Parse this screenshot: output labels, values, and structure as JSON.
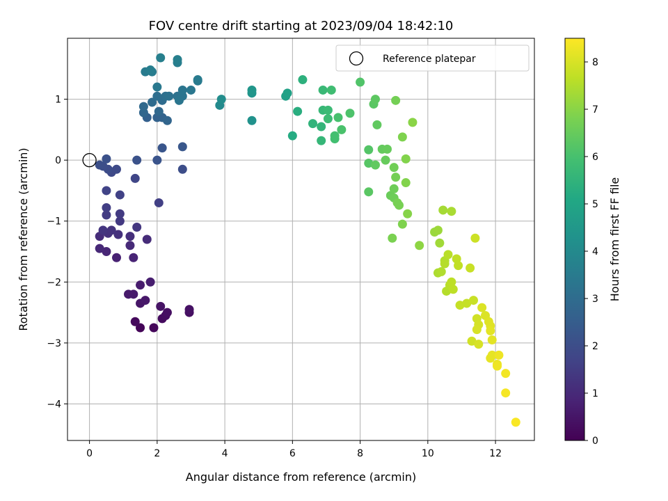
{
  "chart_data": {
    "type": "scatter",
    "title": "FOV centre drift starting at 2023/09/04 18:42:10",
    "xlabel": "Angular distance from reference (arcmin)",
    "ylabel": "Rotation from reference (arcmin)",
    "colorbar_label": "Hours from first FF file",
    "xlim": [
      -0.65,
      13.15
    ],
    "ylim": [
      -4.6,
      2.0
    ],
    "clim": [
      0,
      8.5
    ],
    "x_ticks": [
      0,
      2,
      4,
      6,
      8,
      10,
      12
    ],
    "y_ticks": [
      1,
      0,
      -1,
      -2,
      -3,
      -4
    ],
    "colorbar_ticks": [
      0,
      1,
      2,
      3,
      4,
      5,
      6,
      7,
      8
    ],
    "grid": true,
    "colormap": "viridis",
    "legend": {
      "position": "top-right",
      "entries": [
        {
          "label": "Reference platepar",
          "marker": "open-circle"
        }
      ]
    },
    "reference_point": {
      "x": 0,
      "y": 0
    },
    "points": [
      [
        1.5,
        -2.75,
        0.1
      ],
      [
        1.9,
        -2.75,
        0.15
      ],
      [
        1.35,
        -2.65,
        0.2
      ],
      [
        2.15,
        -2.6,
        0.25
      ],
      [
        2.25,
        -2.55,
        0.3
      ],
      [
        2.3,
        -2.5,
        0.35
      ],
      [
        2.95,
        -2.5,
        0.35
      ],
      [
        2.95,
        -2.45,
        0.4
      ],
      [
        2.1,
        -2.4,
        0.45
      ],
      [
        1.5,
        -2.35,
        0.5
      ],
      [
        1.65,
        -2.3,
        0.55
      ],
      [
        1.15,
        -2.2,
        0.6
      ],
      [
        1.3,
        -2.2,
        0.6
      ],
      [
        1.5,
        -2.05,
        0.65
      ],
      [
        1.8,
        -2.0,
        0.7
      ],
      [
        0.8,
        -1.6,
        0.8
      ],
      [
        1.3,
        -1.6,
        0.85
      ],
      [
        0.5,
        -1.5,
        0.9
      ],
      [
        0.3,
        -1.45,
        0.95
      ],
      [
        1.2,
        -1.4,
        1.0
      ],
      [
        1.7,
        -1.3,
        1.05
      ],
      [
        0.3,
        -1.25,
        1.1
      ],
      [
        1.2,
        -1.25,
        1.15
      ],
      [
        0.85,
        -1.22,
        1.2
      ],
      [
        0.55,
        -1.2,
        1.2
      ],
      [
        0.65,
        -1.15,
        1.25
      ],
      [
        0.4,
        -1.15,
        1.3
      ],
      [
        1.4,
        -1.1,
        1.35
      ],
      [
        0.9,
        -1.0,
        1.4
      ],
      [
        0.9,
        -0.88,
        1.45
      ],
      [
        0.5,
        -0.9,
        1.5
      ],
      [
        0.5,
        -0.78,
        1.55
      ],
      [
        2.05,
        -0.7,
        1.6
      ],
      [
        0.9,
        -0.57,
        1.65
      ],
      [
        0.5,
        -0.5,
        1.7
      ],
      [
        1.35,
        -0.3,
        1.75
      ],
      [
        0.65,
        -0.2,
        1.85
      ],
      [
        0.8,
        -0.15,
        1.9
      ],
      [
        0.55,
        -0.15,
        1.95
      ],
      [
        2.75,
        -0.15,
        2.0
      ],
      [
        0.4,
        -0.1,
        2.0
      ],
      [
        0.3,
        -0.08,
        2.05
      ],
      [
        0.5,
        0.02,
        2.1
      ],
      [
        1.4,
        0.0,
        2.15
      ],
      [
        2.0,
        0.0,
        2.2
      ],
      [
        2.15,
        0.2,
        2.25
      ],
      [
        2.75,
        0.22,
        2.3
      ],
      [
        1.7,
        0.7,
        2.6
      ],
      [
        2.0,
        0.7,
        2.65
      ],
      [
        2.15,
        0.7,
        2.7
      ],
      [
        2.3,
        0.65,
        2.75
      ],
      [
        1.6,
        0.78,
        2.8
      ],
      [
        2.05,
        0.8,
        2.85
      ],
      [
        1.6,
        0.88,
        2.9
      ],
      [
        1.85,
        0.95,
        2.95
      ],
      [
        2.15,
        0.98,
        3.0
      ],
      [
        2.0,
        1.05,
        3.05
      ],
      [
        2.25,
        1.05,
        3.1
      ],
      [
        2.35,
        1.05,
        3.15
      ],
      [
        2.6,
        1.05,
        3.2
      ],
      [
        2.75,
        1.05,
        3.25
      ],
      [
        2.65,
        0.98,
        3.3
      ],
      [
        2.75,
        1.15,
        3.3
      ],
      [
        3.0,
        1.15,
        3.35
      ],
      [
        2.0,
        1.2,
        3.4
      ],
      [
        3.2,
        1.3,
        3.45
      ],
      [
        3.2,
        1.32,
        3.5
      ],
      [
        1.65,
        1.45,
        3.5
      ],
      [
        1.85,
        1.45,
        3.55
      ],
      [
        1.8,
        1.48,
        3.6
      ],
      [
        2.6,
        1.6,
        3.6
      ],
      [
        2.6,
        1.65,
        3.65
      ],
      [
        2.1,
        1.68,
        3.65
      ],
      [
        3.85,
        0.9,
        4.0
      ],
      [
        3.9,
        1.0,
        4.1
      ],
      [
        4.8,
        0.65,
        4.3
      ],
      [
        4.8,
        1.1,
        4.4
      ],
      [
        4.8,
        1.15,
        4.45
      ],
      [
        5.8,
        1.05,
        4.8
      ],
      [
        5.85,
        1.1,
        4.85
      ],
      [
        6.0,
        0.4,
        5.2
      ],
      [
        6.15,
        0.8,
        5.3
      ],
      [
        6.3,
        1.32,
        5.4
      ],
      [
        6.6,
        0.6,
        5.5
      ],
      [
        6.85,
        0.55,
        5.55
      ],
      [
        6.85,
        0.32,
        5.6
      ],
      [
        6.9,
        0.82,
        5.65
      ],
      [
        6.9,
        1.15,
        5.7
      ],
      [
        7.05,
        0.82,
        5.75
      ],
      [
        7.05,
        0.68,
        5.8
      ],
      [
        7.15,
        1.15,
        5.85
      ],
      [
        7.25,
        0.35,
        5.9
      ],
      [
        7.25,
        0.4,
        5.95
      ],
      [
        7.35,
        0.7,
        6.0
      ],
      [
        7.45,
        0.5,
        6.05
      ],
      [
        7.7,
        0.77,
        6.1
      ],
      [
        8.0,
        1.28,
        6.15
      ],
      [
        8.25,
        0.17,
        6.2
      ],
      [
        8.25,
        -0.05,
        6.25
      ],
      [
        8.25,
        -0.52,
        6.3
      ],
      [
        8.4,
        0.92,
        6.3
      ],
      [
        8.45,
        1.0,
        6.35
      ],
      [
        8.45,
        -0.08,
        6.4
      ],
      [
        8.5,
        0.58,
        6.4
      ],
      [
        8.65,
        0.18,
        6.45
      ],
      [
        8.75,
        0.0,
        6.5
      ],
      [
        8.8,
        0.18,
        6.5
      ],
      [
        8.9,
        -0.58,
        6.55
      ],
      [
        9.0,
        -0.47,
        6.6
      ],
      [
        9.0,
        -0.62,
        6.6
      ],
      [
        9.0,
        -0.12,
        6.65
      ],
      [
        9.05,
        0.98,
        6.7
      ],
      [
        9.05,
        -0.28,
        6.7
      ],
      [
        9.1,
        -0.7,
        6.75
      ],
      [
        9.15,
        -0.74,
        6.75
      ],
      [
        8.95,
        -1.28,
        6.8
      ],
      [
        9.25,
        -1.05,
        6.85
      ],
      [
        9.25,
        0.38,
        6.85
      ],
      [
        9.35,
        -0.37,
        6.9
      ],
      [
        9.35,
        0.02,
        6.9
      ],
      [
        9.4,
        -0.88,
        6.95
      ],
      [
        9.55,
        0.62,
        7.0
      ],
      [
        9.75,
        -1.4,
        7.05
      ],
      [
        10.2,
        -1.18,
        7.2
      ],
      [
        10.3,
        -1.15,
        7.25
      ],
      [
        10.35,
        -1.36,
        7.3
      ],
      [
        10.45,
        -0.82,
        7.35
      ],
      [
        10.7,
        -0.84,
        7.4
      ],
      [
        10.3,
        -1.85,
        7.45
      ],
      [
        10.4,
        -1.83,
        7.5
      ],
      [
        10.5,
        -1.65,
        7.5
      ],
      [
        10.5,
        -1.7,
        7.55
      ],
      [
        10.55,
        -2.15,
        7.55
      ],
      [
        10.6,
        -1.55,
        7.6
      ],
      [
        10.65,
        -2.05,
        7.6
      ],
      [
        10.7,
        -2.0,
        7.65
      ],
      [
        10.75,
        -2.12,
        7.65
      ],
      [
        10.85,
        -1.62,
        7.7
      ],
      [
        10.9,
        -1.73,
        7.7
      ],
      [
        10.95,
        -2.38,
        7.75
      ],
      [
        11.15,
        -2.35,
        7.75
      ],
      [
        11.25,
        -1.77,
        7.8
      ],
      [
        11.35,
        -2.3,
        7.8
      ],
      [
        11.4,
        -1.28,
        7.85
      ],
      [
        11.3,
        -2.97,
        7.9
      ],
      [
        11.45,
        -2.6,
        7.9
      ],
      [
        11.5,
        -2.7,
        7.95
      ],
      [
        11.5,
        -3.02,
        8.0
      ],
      [
        11.45,
        -2.78,
        8.0
      ],
      [
        11.6,
        -2.42,
        8.05
      ],
      [
        11.7,
        -2.55,
        8.05
      ],
      [
        11.8,
        -2.65,
        8.1
      ],
      [
        11.85,
        -2.72,
        8.1
      ],
      [
        11.85,
        -2.8,
        8.15
      ],
      [
        11.9,
        -2.95,
        8.15
      ],
      [
        11.85,
        -3.25,
        8.2
      ],
      [
        11.9,
        -3.2,
        8.2
      ],
      [
        12.05,
        -3.35,
        8.25
      ],
      [
        12.05,
        -3.38,
        8.3
      ],
      [
        12.1,
        -3.2,
        8.3
      ],
      [
        12.3,
        -3.5,
        8.35
      ],
      [
        12.3,
        -3.82,
        8.4
      ],
      [
        12.6,
        -4.3,
        8.45
      ]
    ]
  }
}
